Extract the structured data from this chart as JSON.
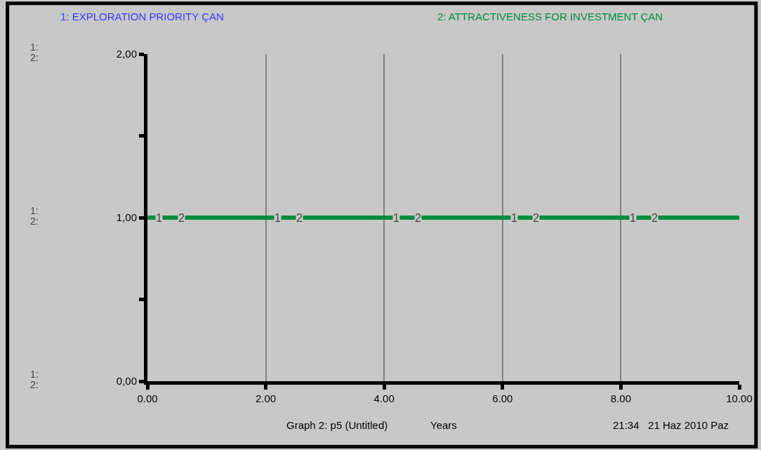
{
  "chart_data": {
    "type": "line",
    "xlabel": "Years",
    "x": [
      0,
      10
    ],
    "series": [
      {
        "name": "1: EXPLORATION PRIORITY ÇAN",
        "color": "#3a3aff",
        "values": [
          null,
          null
        ]
      },
      {
        "name": "2: ATTRACTIVENESS FOR INVESTMENT ÇAN",
        "color": "#008c3c",
        "values": [
          1,
          1
        ]
      }
    ],
    "xlim": [
      0,
      10
    ],
    "xticks": [
      {
        "value": 0,
        "label": "0.00"
      },
      {
        "value": 2,
        "label": "2.00"
      },
      {
        "value": 4,
        "label": "4.00"
      },
      {
        "value": 6,
        "label": "6.00"
      },
      {
        "value": 8,
        "label": "8.00"
      },
      {
        "value": 10,
        "label": "10.00"
      }
    ],
    "ylim": [
      0,
      2
    ],
    "yticks": [
      {
        "value": 0,
        "label": "0,00"
      },
      {
        "value": 0.5,
        "label": null
      },
      {
        "value": 1,
        "label": "1,00"
      },
      {
        "value": 1.5,
        "label": null
      },
      {
        "value": 2,
        "label": "2,00"
      }
    ],
    "grid": "x",
    "line_style": "solid",
    "annotations": [
      {
        "text": "1",
        "x": 0.2,
        "y": 1
      },
      {
        "text": "2",
        "x": 0.57,
        "y": 1
      },
      {
        "text": "1",
        "x": 2.2,
        "y": 1
      },
      {
        "text": "2",
        "x": 2.57,
        "y": 1
      },
      {
        "text": "1",
        "x": 4.2,
        "y": 1
      },
      {
        "text": "2",
        "x": 4.57,
        "y": 1
      },
      {
        "text": "1",
        "x": 6.2,
        "y": 1
      },
      {
        "text": "2",
        "x": 6.57,
        "y": 1
      },
      {
        "text": "1",
        "x": 8.2,
        "y": 1
      },
      {
        "text": "2",
        "x": 8.57,
        "y": 1
      },
      "Graph 2: p5 (Untitled)",
      "21:34   21 Haz 2010 Paz",
      "1:",
      "2:",
      "1:",
      "2:",
      "1:",
      "2:"
    ]
  }
}
